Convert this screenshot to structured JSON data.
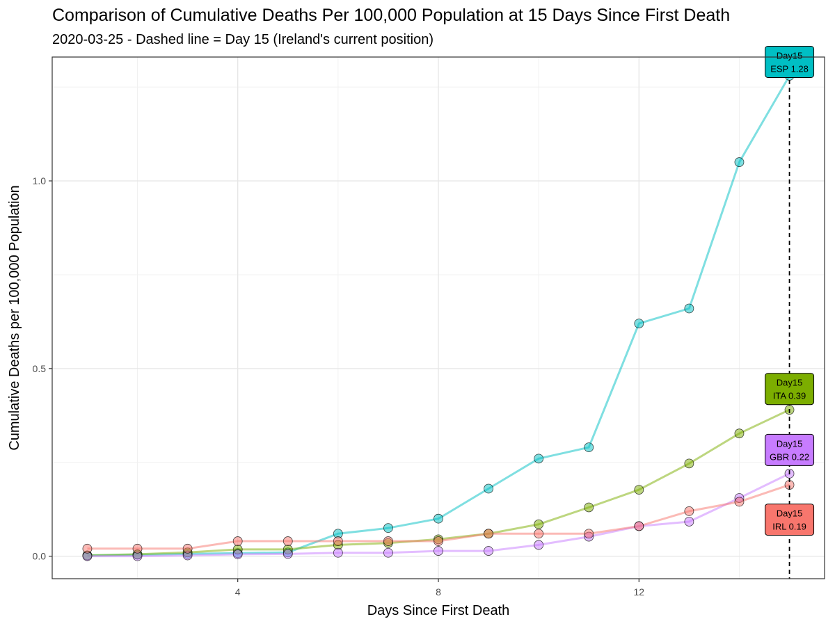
{
  "chart_data": {
    "type": "line",
    "title": "Comparison of Cumulative Deaths Per 100,000 Population at 15 Days Since First Death",
    "subtitle": "2020-03-25 - Dashed line = Day 15 (Ireland's current position)",
    "xlabel": "Days Since First Death",
    "ylabel": "Cumulative Deaths per 100,000 Population",
    "xlim": [
      0.3,
      15.7
    ],
    "ylim": [
      -0.06,
      1.33
    ],
    "x_ticks": [
      4,
      8,
      12
    ],
    "y_ticks": [
      0.0,
      0.5,
      1.0
    ],
    "y_tick_labels": [
      "0.0",
      "0.5",
      "1.0"
    ],
    "grid": true,
    "legend": "none",
    "reference_line": {
      "x": 15,
      "style": "dashed"
    },
    "x": [
      1,
      2,
      3,
      4,
      5,
      6,
      7,
      8,
      9,
      10,
      11,
      12,
      13,
      14,
      15
    ],
    "series": [
      {
        "name": "ESP",
        "color": "#00BFC4",
        "values": [
          0.002,
          0.004,
          0.006,
          0.008,
          0.01,
          0.06,
          0.075,
          0.1,
          0.18,
          0.26,
          0.29,
          0.62,
          0.66,
          1.05,
          1.28
        ]
      },
      {
        "name": "ITA",
        "color": "#7CAE00",
        "values": [
          0.002,
          0.005,
          0.01,
          0.018,
          0.018,
          0.03,
          0.035,
          0.045,
          0.06,
          0.085,
          0.13,
          0.177,
          0.247,
          0.327,
          0.39
        ]
      },
      {
        "name": "GBR",
        "color": "#C77CFF",
        "values": [
          0.0,
          0.0,
          0.002,
          0.005,
          0.006,
          0.009,
          0.009,
          0.014,
          0.014,
          0.03,
          0.052,
          0.08,
          0.092,
          0.155,
          0.22
        ]
      },
      {
        "name": "IRL",
        "color": "#F8766D",
        "values": [
          0.02,
          0.02,
          0.02,
          0.04,
          0.04,
          0.04,
          0.04,
          0.04,
          0.06,
          0.06,
          0.06,
          0.08,
          0.12,
          0.145,
          0.19
        ]
      }
    ],
    "annotations": [
      {
        "series": "ESP",
        "line1": "Day15",
        "line2": "ESP 1.28",
        "fill": "#00BFC4"
      },
      {
        "series": "ITA",
        "line1": "Day15",
        "line2": "ITA 0.39",
        "fill": "#7CAE00"
      },
      {
        "series": "GBR",
        "line1": "Day15",
        "line2": "GBR 0.22",
        "fill": "#C77CFF"
      },
      {
        "series": "IRL",
        "line1": "Day15",
        "line2": "IRL 0.19",
        "fill": "#F8766D"
      }
    ]
  }
}
